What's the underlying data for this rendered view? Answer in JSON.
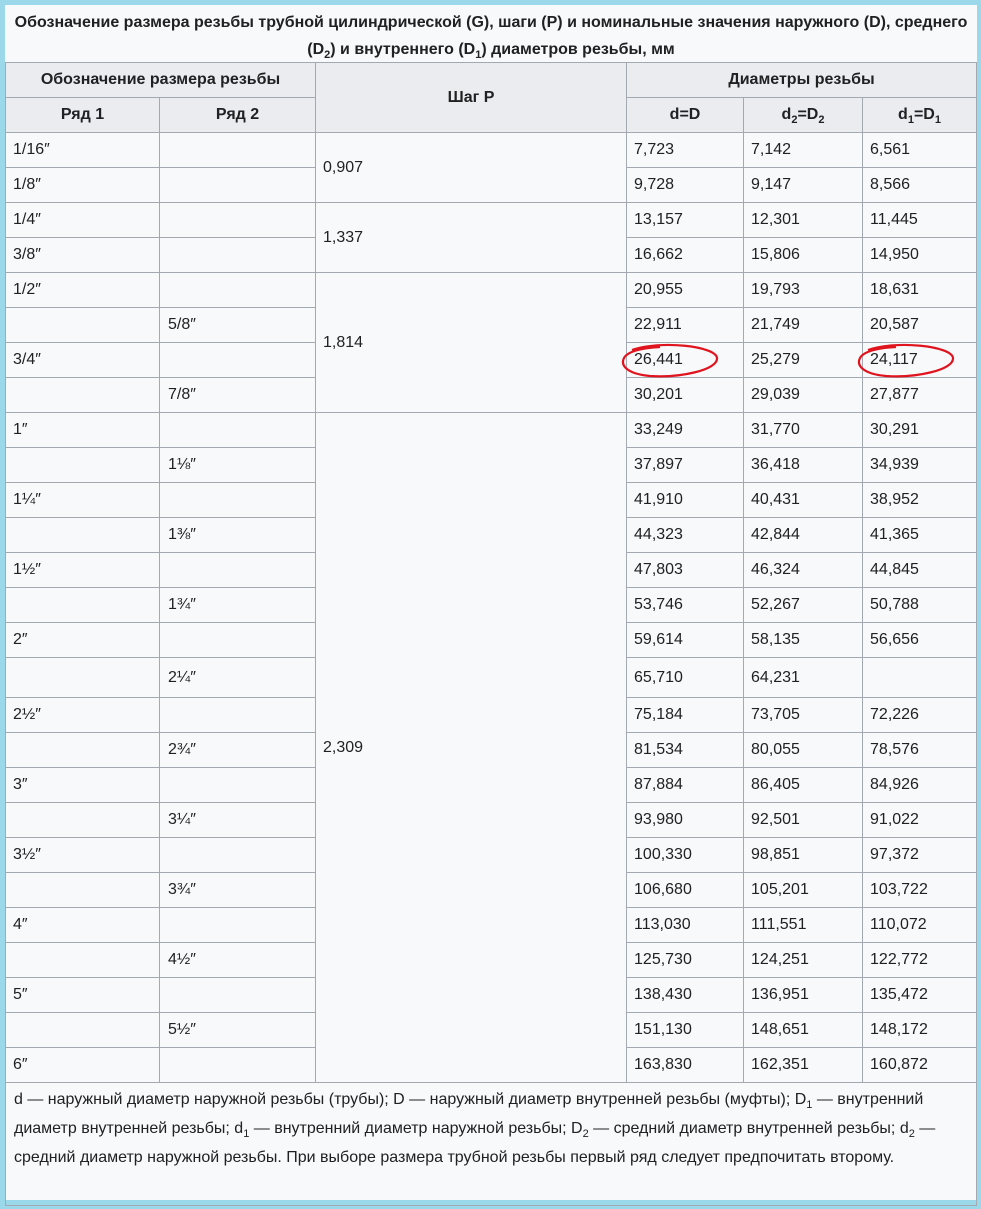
{
  "title": [
    "Обозначение размера резьбы трубной цилиндрической (G), шаги (P) и номинальные значения наружного (D), среднего (D",
    "2",
    ") и внутреннего (D",
    "1",
    ") диаметров резьбы, мм"
  ],
  "headers": {
    "designation": "Обозначение размера резьбы",
    "pitch": "Шаг P",
    "diameters": "Диаметры резьбы",
    "row1": "Ряд 1",
    "row2": "Ряд 2",
    "d": [
      "d=D"
    ],
    "d2": [
      "d",
      "2",
      "=D",
      "2"
    ],
    "d1": [
      "d",
      "1",
      "=D",
      "1"
    ]
  },
  "pitch_groups": [
    {
      "pitch": "0,907",
      "rows": 2
    },
    {
      "pitch": "1,337",
      "rows": 2
    },
    {
      "pitch": "1,814",
      "rows": 4
    },
    {
      "pitch": "2,309",
      "rows": 19
    }
  ],
  "rows": [
    [
      "1/16″",
      "",
      "7,723",
      "7,142",
      "6,561"
    ],
    [
      "1/8″",
      "",
      "9,728",
      "9,147",
      "8,566"
    ],
    [
      "1/4″",
      "",
      "13,157",
      "12,301",
      "11,445"
    ],
    [
      "3/8″",
      "",
      "16,662",
      "15,806",
      "14,950"
    ],
    [
      "1/2″",
      "",
      "20,955",
      "19,793",
      "18,631"
    ],
    [
      "",
      "5/8″",
      "22,911",
      "21,749",
      "20,587"
    ],
    [
      "3/4″",
      "",
      "26,441",
      "25,279",
      "24,117"
    ],
    [
      "",
      "7/8″",
      "30,201",
      "29,039",
      "27,877"
    ],
    [
      "1″",
      "",
      "33,249",
      "31,770",
      "30,291"
    ],
    [
      "",
      "1⅛″",
      "37,897",
      "36,418",
      "34,939"
    ],
    [
      "1¼″",
      "",
      "41,910",
      "40,431",
      "38,952"
    ],
    [
      "",
      "1⅜″",
      "44,323",
      "42,844",
      "41,365"
    ],
    [
      "1½″",
      "",
      "47,803",
      "46,324",
      "44,845"
    ],
    [
      "",
      "1¾″",
      "53,746",
      "52,267",
      "50,788"
    ],
    [
      "2″",
      "",
      "59,614",
      "58,135",
      "56,656"
    ],
    [
      "",
      "2¼″",
      "65,710",
      "64,231",
      ""
    ],
    [
      "2½″",
      "",
      "75,184",
      "73,705",
      "72,226"
    ],
    [
      "",
      "2¾″",
      "81,534",
      "80,055",
      "78,576"
    ],
    [
      "3″",
      "",
      "87,884",
      "86,405",
      "84,926"
    ],
    [
      "",
      "3¼″",
      "93,980",
      "92,501",
      "91,022"
    ],
    [
      "3½″",
      "",
      "100,330",
      "98,851",
      "97,372"
    ],
    [
      "",
      "3¾″",
      "106,680",
      "105,201",
      "103,722"
    ],
    [
      "4″",
      "",
      "113,030",
      "111,551",
      "110,072"
    ],
    [
      "",
      "4½″",
      "125,730",
      "124,251",
      "122,772"
    ],
    [
      "5″",
      "",
      "138,430",
      "136,951",
      "135,472"
    ],
    [
      "",
      "5½″",
      "151,130",
      "148,651",
      "148,172"
    ],
    [
      "6″",
      "",
      "163,830",
      "162,351",
      "160,872"
    ]
  ],
  "circled_cells": [
    [
      6,
      2
    ],
    [
      6,
      4
    ]
  ],
  "circle_color": "#e0141e",
  "footnote": [
    "d — наружный диаметр наружной резьбы (трубы); D — наружный диаметр внутренней резьбы (муфты); D",
    "1",
    " — внутренний диаметр внутренней резьбы; d",
    "1",
    " — внутренний диаметр наружной резьбы; D",
    "2",
    " — средний диаметр внутренней резьбы; d",
    "2",
    " — средний диаметр наружной резьбы. При выборе размера трубной резьбы первый ряд следует предпочитать второму."
  ],
  "colors": {
    "frame": "#9bd9ea",
    "header_bg": "#eaecf0",
    "cell_bg": "#f8f9fa",
    "border": "#a2a9b1"
  }
}
